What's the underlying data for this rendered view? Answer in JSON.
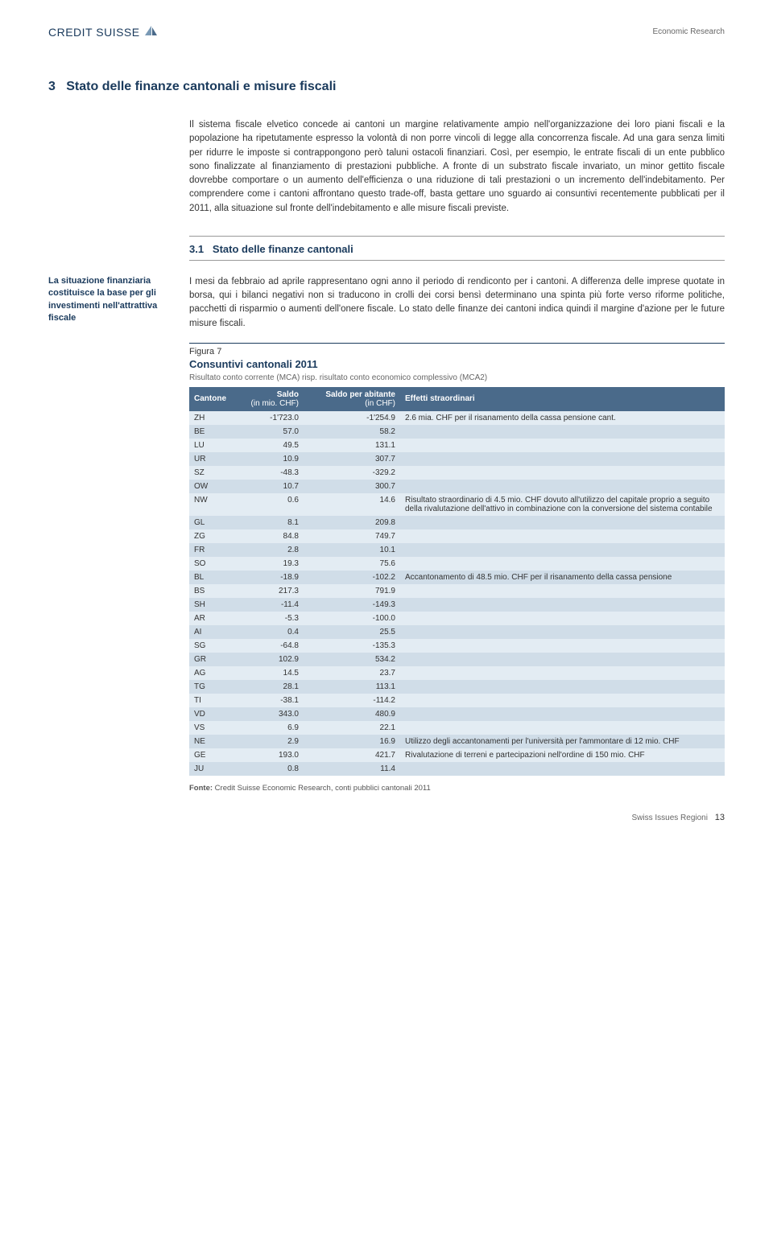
{
  "header": {
    "logo_text": "CREDIT SUISSE",
    "right_label": "Economic Research"
  },
  "section": {
    "number": "3",
    "title": "Stato delle finanze cantonali e misure fiscali"
  },
  "intro_paragraph": "Il sistema fiscale elvetico concede ai cantoni un margine relativamente ampio nell'organizzazione dei loro piani fiscali e la popolazione ha ripetutamente espresso la volontà di non porre vincoli di legge alla concorrenza fiscale. Ad una gara senza limiti per ridurre le imposte si contrappongono però taluni ostacoli finanziari. Così, per esempio, le entrate fiscali di un ente pubblico sono finalizzate al finanziamento di prestazioni pubbliche. A fronte di un substrato fiscale invariato, un minor gettito fiscale dovrebbe comportare o un aumento dell'efficienza o una riduzione di tali prestazioni o un incremento dell'indebitamento. Per comprendere come i cantoni affrontano questo trade-off, basta gettare uno sguardo ai consuntivi recentemente pubblicati per il 2011, alla situazione sul fronte dell'indebitamento e alle misure fiscali previste.",
  "subsection": {
    "number": "3.1",
    "title": "Stato delle finanze cantonali"
  },
  "side_note": "La situazione finanziaria costituisce la base per gli investimenti nell'attrattiva fiscale",
  "main_paragraph": "I mesi da febbraio ad aprile rappresentano ogni anno il periodo di rendiconto per i cantoni. A differenza delle imprese quotate in borsa, qui i bilanci negativi non si traducono in crolli dei corsi bensì determinano una spinta più forte verso riforme politiche, pacchetti di risparmio o aumenti dell'onere fiscale. Lo stato delle finanze dei cantoni indica quindi il margine d'azione per le future misure fiscali.",
  "figure": {
    "label": "Figura 7",
    "title": "Consuntivi cantonali 2011",
    "subtitle": "Risultato conto corrente (MCA) risp. risultato conto economico complessivo (MCA2)",
    "columns": {
      "canton": "Cantone",
      "saldo": "Saldo",
      "saldo_unit": "(in mio. CHF)",
      "per_capita": "Saldo per abitante",
      "per_capita_unit": "(in CHF)",
      "effects": "Effetti straordinari"
    },
    "rows": [
      {
        "c": "ZH",
        "s": "-1'723.0",
        "pc": "-1'254.9",
        "e": "2.6 mia. CHF per il risanamento della cassa pensione cant."
      },
      {
        "c": "BE",
        "s": "57.0",
        "pc": "58.2",
        "e": ""
      },
      {
        "c": "LU",
        "s": "49.5",
        "pc": "131.1",
        "e": ""
      },
      {
        "c": "UR",
        "s": "10.9",
        "pc": "307.7",
        "e": ""
      },
      {
        "c": "SZ",
        "s": "-48.3",
        "pc": "-329.2",
        "e": ""
      },
      {
        "c": "OW",
        "s": "10.7",
        "pc": "300.7",
        "e": ""
      },
      {
        "c": "NW",
        "s": "0.6",
        "pc": "14.6",
        "e": "Risultato straordinario di 4.5 mio. CHF dovuto all'utilizzo del capitale proprio a seguito della rivalutazione dell'attivo in combinazione con la conversione del sistema contabile"
      },
      {
        "c": "GL",
        "s": "8.1",
        "pc": "209.8",
        "e": ""
      },
      {
        "c": "ZG",
        "s": "84.8",
        "pc": "749.7",
        "e": ""
      },
      {
        "c": "FR",
        "s": "2.8",
        "pc": "10.1",
        "e": ""
      },
      {
        "c": "SO",
        "s": "19.3",
        "pc": "75.6",
        "e": ""
      },
      {
        "c": "BL",
        "s": "-18.9",
        "pc": "-102.2",
        "e": "Accantonamento di 48.5 mio. CHF per il risanamento della cassa pensione"
      },
      {
        "c": "BS",
        "s": "217.3",
        "pc": "791.9",
        "e": ""
      },
      {
        "c": "SH",
        "s": "-11.4",
        "pc": "-149.3",
        "e": ""
      },
      {
        "c": "AR",
        "s": "-5.3",
        "pc": "-100.0",
        "e": ""
      },
      {
        "c": "AI",
        "s": "0.4",
        "pc": "25.5",
        "e": ""
      },
      {
        "c": "SG",
        "s": "-64.8",
        "pc": "-135.3",
        "e": ""
      },
      {
        "c": "GR",
        "s": "102.9",
        "pc": "534.2",
        "e": ""
      },
      {
        "c": "AG",
        "s": "14.5",
        "pc": "23.7",
        "e": ""
      },
      {
        "c": "TG",
        "s": "28.1",
        "pc": "113.1",
        "e": ""
      },
      {
        "c": "TI",
        "s": "-38.1",
        "pc": "-114.2",
        "e": ""
      },
      {
        "c": "VD",
        "s": "343.0",
        "pc": "480.9",
        "e": ""
      },
      {
        "c": "VS",
        "s": "6.9",
        "pc": "22.1",
        "e": ""
      },
      {
        "c": "NE",
        "s": "2.9",
        "pc": "16.9",
        "e": "Utilizzo degli accantonamenti per l'università per l'ammontare di 12 mio. CHF"
      },
      {
        "c": "GE",
        "s": "193.0",
        "pc": "421.7",
        "e": "Rivalutazione di terreni e partecipazioni nell'ordine di 150 mio. CHF"
      },
      {
        "c": "JU",
        "s": "0.8",
        "pc": "11.4",
        "e": ""
      }
    ],
    "source_label": "Fonte:",
    "source_text": "Credit Suisse Economic Research, conti pubblici cantonali 2011"
  },
  "footer": {
    "text": "Swiss Issues Regioni",
    "page": "13"
  },
  "colors": {
    "brand": "#1a3a5c",
    "table_header_bg": "#4a6a8a",
    "row_odd": "#e3ecf3",
    "row_even": "#d0dde8"
  }
}
